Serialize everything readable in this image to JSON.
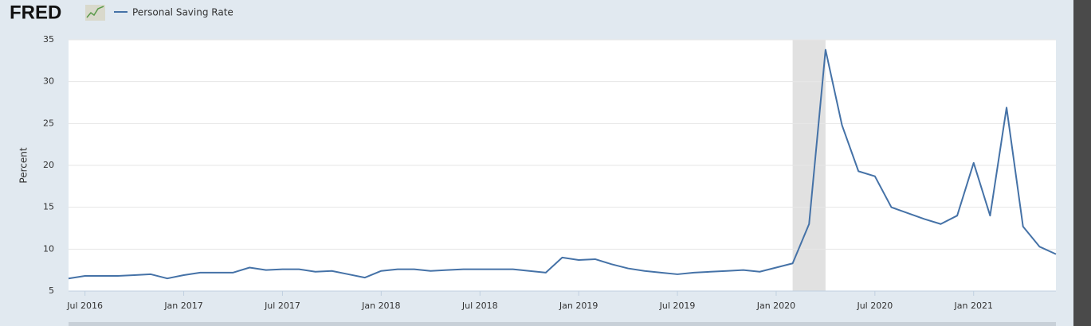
{
  "logo": "FRED",
  "chart_data": {
    "type": "line",
    "y_label": "Percent",
    "x": [
      "2016-06",
      "2016-07",
      "2016-08",
      "2016-09",
      "2016-10",
      "2016-11",
      "2016-12",
      "2017-01",
      "2017-02",
      "2017-03",
      "2017-04",
      "2017-05",
      "2017-06",
      "2017-07",
      "2017-08",
      "2017-09",
      "2017-10",
      "2017-11",
      "2017-12",
      "2018-01",
      "2018-02",
      "2018-03",
      "2018-04",
      "2018-05",
      "2018-06",
      "2018-07",
      "2018-08",
      "2018-09",
      "2018-10",
      "2018-11",
      "2018-12",
      "2019-01",
      "2019-02",
      "2019-03",
      "2019-04",
      "2019-05",
      "2019-06",
      "2019-07",
      "2019-08",
      "2019-09",
      "2019-10",
      "2019-11",
      "2019-12",
      "2020-01",
      "2020-02",
      "2020-03",
      "2020-04",
      "2020-05",
      "2020-06",
      "2020-07",
      "2020-08",
      "2020-09",
      "2020-10",
      "2020-11",
      "2020-12",
      "2021-01",
      "2021-02",
      "2021-03",
      "2021-04",
      "2021-05",
      "2021-06"
    ],
    "series": [
      {
        "name": "Personal Saving Rate",
        "color": "#4572a7",
        "values": [
          6.5,
          6.8,
          6.8,
          6.8,
          6.9,
          7.0,
          6.5,
          6.9,
          7.2,
          7.2,
          7.2,
          7.8,
          7.5,
          7.6,
          7.6,
          7.3,
          7.4,
          7.0,
          6.6,
          7.4,
          7.6,
          7.6,
          7.4,
          7.5,
          7.6,
          7.6,
          7.6,
          7.6,
          7.4,
          7.2,
          9.0,
          8.7,
          8.8,
          8.2,
          7.7,
          7.4,
          7.2,
          7.0,
          7.2,
          7.3,
          7.4,
          7.5,
          7.3,
          7.8,
          8.3,
          13.0,
          33.8,
          24.8,
          19.3,
          18.7,
          15.0,
          14.3,
          13.6,
          13.0,
          14.0,
          20.3,
          14.0,
          26.9,
          12.7,
          10.3,
          9.4
        ]
      }
    ],
    "recession": [
      "2020-02",
      "2020-04"
    ],
    "ylim": [
      5,
      35
    ],
    "yticks": [
      5,
      10,
      15,
      20,
      25,
      30,
      35
    ],
    "xticks": [
      {
        "value": "2016-07",
        "label": "Jul 2016"
      },
      {
        "value": "2017-01",
        "label": "Jan 2017"
      },
      {
        "value": "2017-07",
        "label": "Jul 2017"
      },
      {
        "value": "2018-01",
        "label": "Jan 2018"
      },
      {
        "value": "2018-07",
        "label": "Jul 2018"
      },
      {
        "value": "2019-01",
        "label": "Jan 2019"
      },
      {
        "value": "2019-07",
        "label": "Jul 2019"
      },
      {
        "value": "2020-01",
        "label": "Jan 2020"
      },
      {
        "value": "2020-07",
        "label": "Jul 2020"
      },
      {
        "value": "2021-01",
        "label": "Jan 2021"
      }
    ],
    "grid": true
  }
}
